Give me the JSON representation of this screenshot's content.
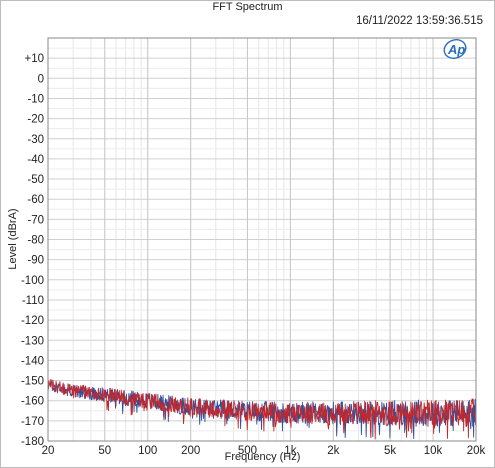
{
  "window": {
    "title": "FFT Spectrum",
    "timestamp": "16/11/2022 13:59:36.515",
    "logo_text": "Ap"
  },
  "chart_data": {
    "type": "line",
    "title": "FFT Spectrum",
    "xlabel": "Frequency (Hz)",
    "ylabel": "Level (dBrA)",
    "x_scale": "log",
    "xlim": [
      20,
      20000
    ],
    "ylim": [
      -180,
      20
    ],
    "grid": true,
    "x_tick_values": [
      20,
      50,
      100,
      200,
      500,
      1000,
      2000,
      5000,
      10000,
      20000
    ],
    "x_tick_labels": [
      "20",
      "50",
      "100",
      "200",
      "500",
      "1k",
      "2k",
      "5k",
      "10k",
      "20k"
    ],
    "y_tick_values": [
      10,
      0,
      -10,
      -20,
      -30,
      -40,
      -50,
      -60,
      -70,
      -80,
      -90,
      -100,
      -110,
      -120,
      -130,
      -140,
      -150,
      -160,
      -170,
      -180
    ],
    "y_tick_labels": [
      "+10",
      "0",
      "-10",
      "-20",
      "-30",
      "-40",
      "-50",
      "-60",
      "-70",
      "-80",
      "-90",
      "-100",
      "-110",
      "-120",
      "-130",
      "-140",
      "-150",
      "-160",
      "-170",
      "-180"
    ],
    "series": [
      {
        "color": "#2f4e9e",
        "points": [
          [
            20,
            -152
          ],
          [
            30,
            -155
          ],
          [
            50,
            -157
          ],
          [
            100,
            -160
          ],
          [
            200,
            -163
          ],
          [
            500,
            -165
          ],
          [
            1000,
            -166
          ],
          [
            2000,
            -166
          ],
          [
            5000,
            -166
          ],
          [
            10000,
            -166
          ],
          [
            20000,
            -166
          ]
        ],
        "ripple_db": 5
      },
      {
        "color": "#c0282d",
        "points": [
          [
            20,
            -152
          ],
          [
            30,
            -155
          ],
          [
            50,
            -157
          ],
          [
            100,
            -160
          ],
          [
            200,
            -163
          ],
          [
            500,
            -165
          ],
          [
            1000,
            -166
          ],
          [
            2000,
            -166
          ],
          [
            5000,
            -166
          ],
          [
            10000,
            -166
          ],
          [
            20000,
            -166
          ]
        ],
        "ripple_db": 5
      }
    ]
  }
}
